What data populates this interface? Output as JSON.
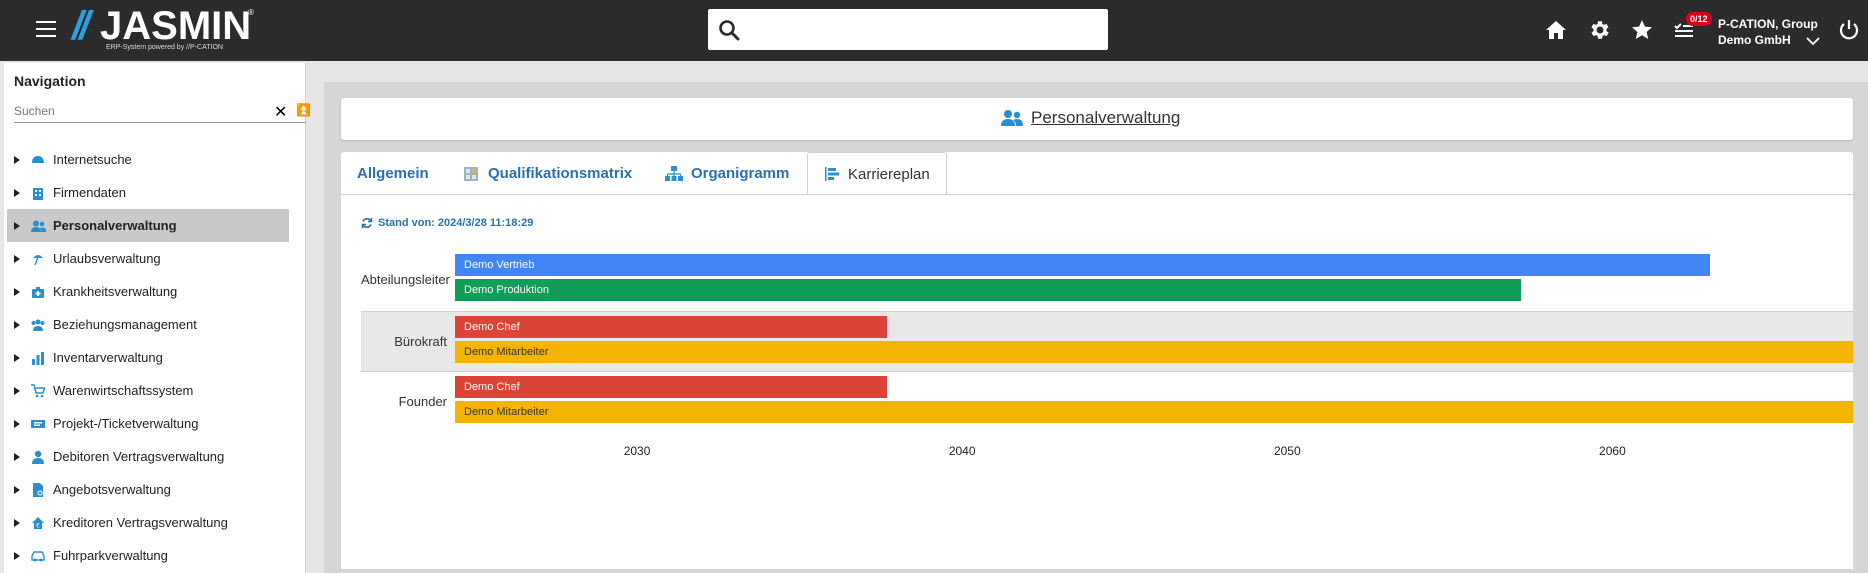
{
  "header": {
    "logo_slashes": "//",
    "logo_text": "JASMIN",
    "logo_reg": "®",
    "logo_sub": "ERP-System powered by //P-CATION",
    "search_placeholder": "",
    "badge": "0/12",
    "user_line1": "P-CATION, Group",
    "user_line2": "Demo GmbH",
    "icons": [
      "menu-icon",
      "search-icon",
      "home-icon",
      "gear-icon",
      "star-icon",
      "tasks-icon",
      "chevron-down-icon",
      "power-icon"
    ]
  },
  "sidebar": {
    "title": "Navigation",
    "search_placeholder": "Suchen",
    "items": [
      {
        "label": "Internetsuche",
        "icon": "helmet-icon",
        "active": false
      },
      {
        "label": "Firmendaten",
        "icon": "building-icon",
        "active": false
      },
      {
        "label": "Personalverwaltung",
        "icon": "users-icon",
        "active": true
      },
      {
        "label": "Urlaubsverwaltung",
        "icon": "beach-icon",
        "active": false
      },
      {
        "label": "Krankheitsverwaltung",
        "icon": "medical-icon",
        "active": false
      },
      {
        "label": "Beziehungsmanagement",
        "icon": "group-icon",
        "active": false
      },
      {
        "label": "Inventarverwaltung",
        "icon": "chart-icon",
        "active": false
      },
      {
        "label": "Warenwirtschaftssystem",
        "icon": "cart-icon",
        "active": false
      },
      {
        "label": "Projekt-/Ticketverwaltung",
        "icon": "ticket-icon",
        "active": false
      },
      {
        "label": "Debitoren Vertragsverwaltung",
        "icon": "person-icon",
        "active": false
      },
      {
        "label": "Angebotsverwaltung",
        "icon": "document-icon",
        "active": false
      },
      {
        "label": "Kreditoren Vertragsverwaltung",
        "icon": "house-euro-icon",
        "active": false
      },
      {
        "label": "Fuhrparkverwaltung",
        "icon": "car-icon",
        "active": false
      }
    ]
  },
  "main": {
    "title": "Personalverwaltung",
    "tabs": [
      {
        "label": "Allgemein",
        "active": false
      },
      {
        "label": "Qualifikationsmatrix",
        "active": false
      },
      {
        "label": "Organigramm",
        "active": false
      },
      {
        "label": "Karriereplan",
        "active": true
      }
    ],
    "stand": "Stand von: 2024/3/28 11:18:29"
  },
  "chart_data": {
    "type": "timeline",
    "x_ticks": [
      2030,
      2040,
      2050,
      2060
    ],
    "x_range": [
      2024.4,
      2067.4
    ],
    "rows": [
      {
        "label": "Abteilungsleiter",
        "bars": [
          {
            "name": "Demo Vertrieb",
            "start": 2024.4,
            "end": 2063.0,
            "color": "#4285f4"
          },
          {
            "name": "Demo Produktion",
            "start": 2024.4,
            "end": 2057.2,
            "color": "#0f9d58"
          }
        ]
      },
      {
        "label": "Bürokraft",
        "bars": [
          {
            "name": "Demo Chef",
            "start": 2024.4,
            "end": 2037.7,
            "color": "#db4437"
          },
          {
            "name": "Demo Mitarbeiter",
            "start": 2024.4,
            "end": 2067.4,
            "color": "#f4b400"
          }
        ]
      },
      {
        "label": "Founder",
        "bars": [
          {
            "name": "Demo Chef",
            "start": 2024.4,
            "end": 2037.7,
            "color": "#db4437"
          },
          {
            "name": "Demo Mitarbeiter",
            "start": 2024.4,
            "end": 2067.4,
            "color": "#f4b400"
          }
        ]
      }
    ]
  }
}
